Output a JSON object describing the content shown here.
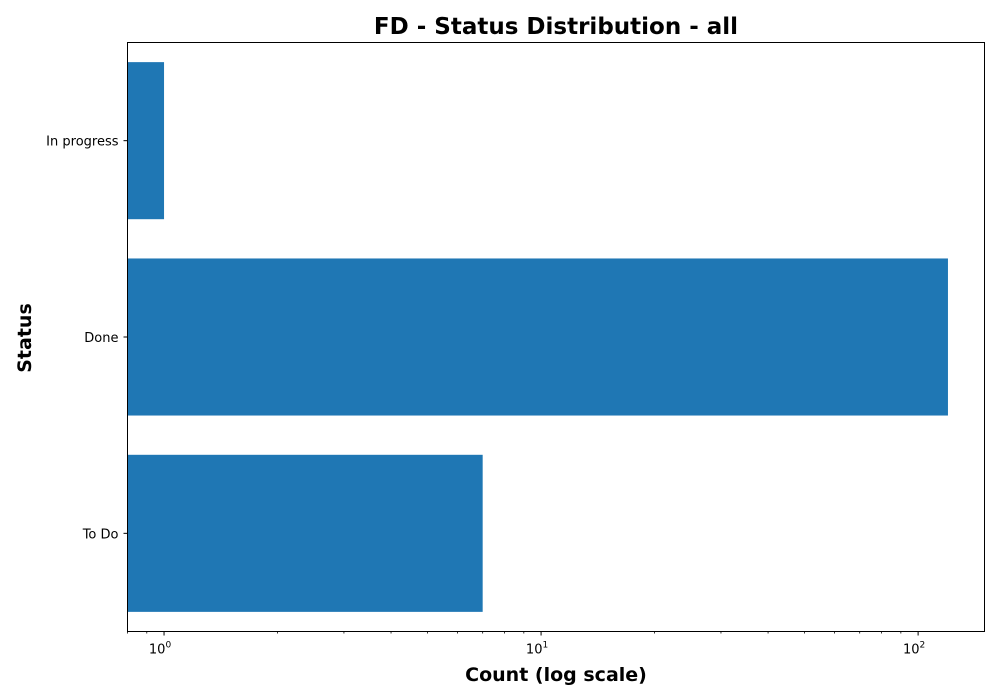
{
  "chart_data": {
    "type": "bar",
    "orientation": "horizontal",
    "title": "FD - Status Distribution - all",
    "xlabel": "Count (log scale)",
    "ylabel": "Status",
    "xscale": "log",
    "xlim": [
      0.8,
      150
    ],
    "xticks": [
      {
        "base": "10",
        "exponent": "0",
        "value": 1
      },
      {
        "base": "10",
        "exponent": "1",
        "value": 10
      },
      {
        "base": "10",
        "exponent": "2",
        "value": 100
      }
    ],
    "categories": [
      "In progress",
      "Done",
      "To Do"
    ],
    "values": [
      1,
      120,
      7
    ],
    "bar_color": "#1f77b4",
    "grid": false,
    "legend": "none"
  }
}
